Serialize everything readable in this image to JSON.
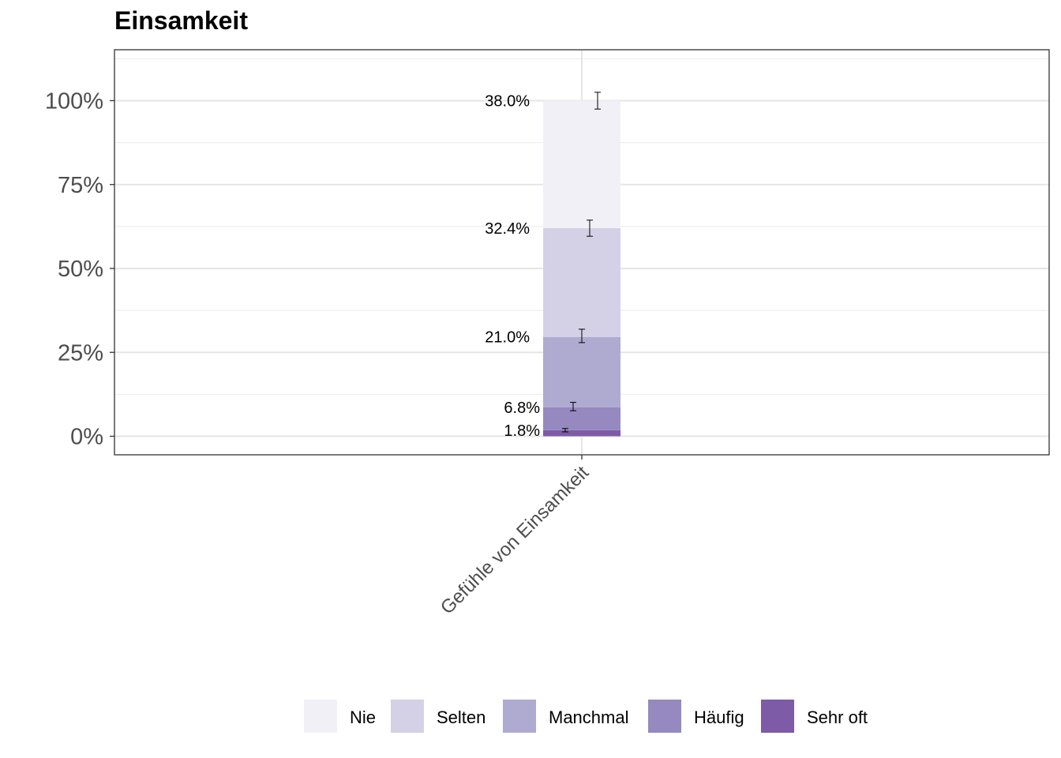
{
  "chart_data": {
    "type": "bar",
    "stacked": true,
    "title": "Einsamkeit",
    "xlabel": "",
    "ylabel": "",
    "categories": [
      "Gefühle von Einsamkeit"
    ],
    "yticks": [
      "0%",
      "25%",
      "50%",
      "75%",
      "100%"
    ],
    "ylim": [
      -5,
      113
    ],
    "grid": true,
    "legend_position": "bottom",
    "series": [
      {
        "name": "Sehr oft",
        "values": [
          1.8
        ],
        "label": "1.8%",
        "error": [
          1.3,
          2.3
        ],
        "color": "#7d5ba6"
      },
      {
        "name": "Häufig",
        "values": [
          6.8
        ],
        "label": "6.8%",
        "error": [
          7.6,
          10.1
        ],
        "color": "#9589c0"
      },
      {
        "name": "Manchmal",
        "values": [
          21.0
        ],
        "label": "21.0%",
        "error": [
          27.9,
          31.9
        ],
        "color": "#afaad0"
      },
      {
        "name": "Selten",
        "values": [
          32.4
        ],
        "label": "32.4%",
        "error": [
          59.6,
          64.4
        ],
        "color": "#d4d1e6"
      },
      {
        "name": "Nie",
        "values": [
          38.0
        ],
        "label": "38.0%",
        "error": [
          97.5,
          102.5
        ],
        "color": "#f2f0f7"
      }
    ],
    "legend_order": [
      "Nie",
      "Selten",
      "Manchmal",
      "Häufig",
      "Sehr oft"
    ]
  }
}
